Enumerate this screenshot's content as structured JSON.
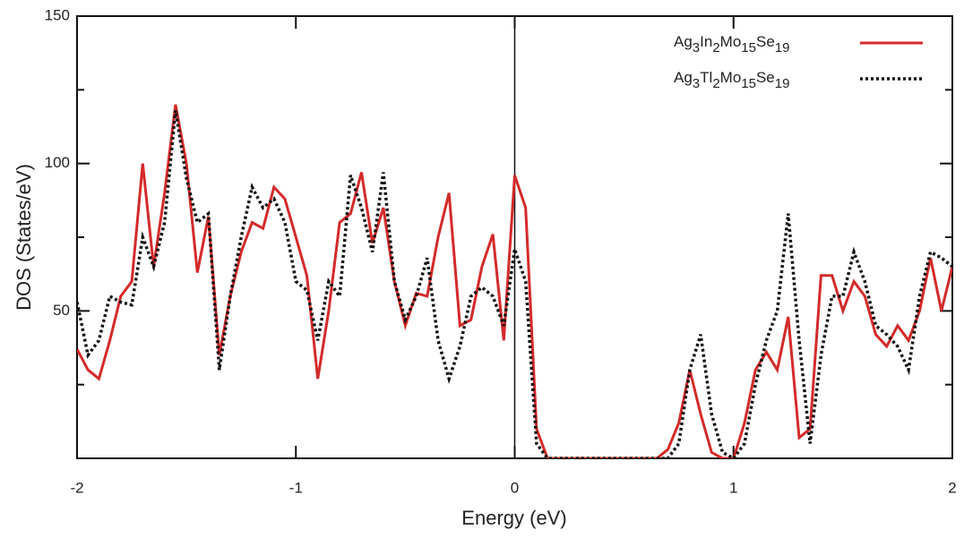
{
  "chart_data": {
    "type": "line",
    "xlabel": "Energy (eV)",
    "ylabel": "DOS (States/eV)",
    "x": [
      -2,
      -1.95,
      -1.9,
      -1.85,
      -1.8,
      -1.75,
      -1.7,
      -1.65,
      -1.6,
      -1.55,
      -1.5,
      -1.45,
      -1.4,
      -1.35,
      -1.3,
      -1.25,
      -1.2,
      -1.15,
      -1.1,
      -1.05,
      -1,
      -0.95,
      -0.9,
      -0.85,
      -0.8,
      -0.75,
      -0.7,
      -0.65,
      -0.6,
      -0.55,
      -0.5,
      -0.45,
      -0.4,
      -0.35,
      -0.3,
      -0.25,
      -0.2,
      -0.15,
      -0.1,
      -0.05,
      0,
      0.05,
      0.1,
      0.15,
      0.2,
      0.25,
      0.3,
      0.35,
      0.4,
      0.45,
      0.5,
      0.55,
      0.6,
      0.65,
      0.7,
      0.75,
      0.8,
      0.85,
      0.9,
      0.95,
      1,
      1.05,
      1.1,
      1.15,
      1.2,
      1.25,
      1.3,
      1.35,
      1.4,
      1.45,
      1.5,
      1.55,
      1.6,
      1.65,
      1.7,
      1.75,
      1.8,
      1.85,
      1.9,
      1.95,
      2
    ],
    "series": [
      {
        "name": "Ag3In2Mo15Se19",
        "color": "#d42a2a",
        "dash": "solid",
        "values": [
          37,
          30,
          27,
          40,
          55,
          60,
          100,
          65,
          90,
          120,
          100,
          63,
          82,
          35,
          55,
          70,
          80,
          78,
          92,
          88,
          75,
          62,
          27,
          50,
          80,
          83,
          97,
          73,
          85,
          60,
          45,
          56,
          55,
          75,
          90,
          45,
          47,
          65,
          76,
          40,
          96,
          85,
          10,
          0,
          0,
          0,
          0,
          0,
          0,
          0,
          0,
          0,
          0,
          0,
          3,
          12,
          30,
          15,
          2,
          0,
          0,
          12,
          30,
          36,
          30,
          48,
          7,
          10,
          62,
          62,
          50,
          60,
          55,
          42,
          38,
          45,
          40,
          50,
          68,
          50,
          65
        ]
      },
      {
        "name": "Ag3Tl2Mo15Se19",
        "color": "#111111",
        "dash": "dotted",
        "values": [
          53,
          35,
          40,
          55,
          53,
          52,
          75,
          65,
          80,
          118,
          95,
          80,
          83,
          30,
          55,
          75,
          92,
          85,
          88,
          80,
          60,
          57,
          40,
          60,
          55,
          96,
          85,
          70,
          97,
          60,
          47,
          55,
          68,
          40,
          27,
          38,
          55,
          58,
          55,
          45,
          71,
          60,
          5,
          0,
          0,
          0,
          0,
          0,
          0,
          0,
          0,
          0,
          0,
          0,
          0,
          5,
          30,
          42,
          15,
          2,
          0,
          5,
          25,
          40,
          50,
          83,
          40,
          5,
          35,
          55,
          55,
          70,
          60,
          45,
          42,
          38,
          30,
          55,
          70,
          68,
          65
        ]
      }
    ],
    "xlim": [
      -2,
      2
    ],
    "xticks": [
      -2,
      -1,
      0,
      1,
      2
    ],
    "ylim": [
      0,
      150
    ],
    "yticks": [
      50,
      100,
      150
    ],
    "yticks_minor": [
      25,
      75,
      125
    ],
    "vlines": [
      0
    ],
    "legend": "upper right"
  }
}
